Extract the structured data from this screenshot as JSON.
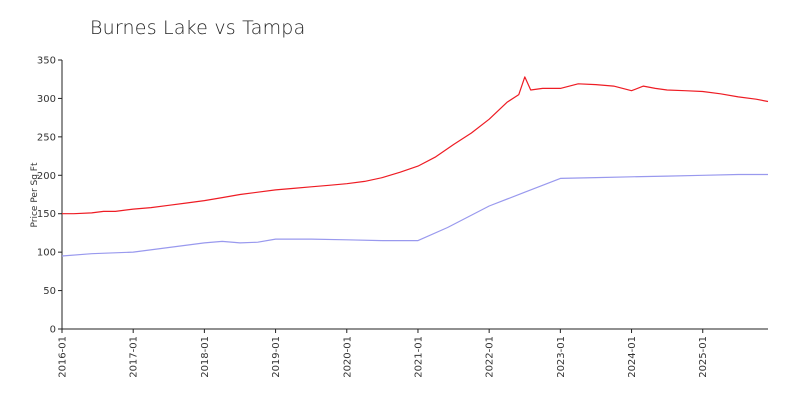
{
  "chart_data": {
    "type": "line",
    "title": "Burnes Lake vs Tampa",
    "xlabel": "",
    "ylabel": "Price Per Sq Ft",
    "ylim": [
      0,
      350
    ],
    "xlim": [
      "2016-01",
      "2025-12"
    ],
    "yticks": [
      0,
      50,
      100,
      150,
      200,
      250,
      300,
      350
    ],
    "xticks": [
      "2016-01",
      "2017-01",
      "2018-01",
      "2019-01",
      "2020-01",
      "2021-01",
      "2022-01",
      "2023-01",
      "2024-01",
      "2025-01"
    ],
    "grid": false,
    "legend": "none",
    "series": [
      {
        "color": "#ee1c24",
        "points": [
          [
            "2016-01",
            150
          ],
          [
            "2016-03",
            150
          ],
          [
            "2016-06",
            151
          ],
          [
            "2016-08",
            153
          ],
          [
            "2016-10",
            153
          ],
          [
            "2017-01",
            156
          ],
          [
            "2017-04",
            158
          ],
          [
            "2017-07",
            161
          ],
          [
            "2017-10",
            164
          ],
          [
            "2018-01",
            167
          ],
          [
            "2018-04",
            171
          ],
          [
            "2018-07",
            175
          ],
          [
            "2018-10",
            178
          ],
          [
            "2019-01",
            181
          ],
          [
            "2019-04",
            183
          ],
          [
            "2019-07",
            185
          ],
          [
            "2019-10",
            187
          ],
          [
            "2020-01",
            189
          ],
          [
            "2020-04",
            192
          ],
          [
            "2020-07",
            197
          ],
          [
            "2020-10",
            204
          ],
          [
            "2021-01",
            212
          ],
          [
            "2021-04",
            224
          ],
          [
            "2021-07",
            240
          ],
          [
            "2021-10",
            255
          ],
          [
            "2022-01",
            273
          ],
          [
            "2022-04",
            295
          ],
          [
            "2022-06",
            305
          ],
          [
            "2022-07",
            328
          ],
          [
            "2022-08",
            311
          ],
          [
            "2022-10",
            313
          ],
          [
            "2023-01",
            313
          ],
          [
            "2023-04",
            319
          ],
          [
            "2023-07",
            318
          ],
          [
            "2023-10",
            316
          ],
          [
            "2024-01",
            310
          ],
          [
            "2024-03",
            316
          ],
          [
            "2024-05",
            313
          ],
          [
            "2024-07",
            311
          ],
          [
            "2024-10",
            310
          ],
          [
            "2025-01",
            309
          ],
          [
            "2025-04",
            306
          ],
          [
            "2025-07",
            302
          ],
          [
            "2025-10",
            299
          ],
          [
            "2025-12",
            296
          ]
        ]
      },
      {
        "color": "#9999ee",
        "points": [
          [
            "2016-01",
            95
          ],
          [
            "2016-06",
            98
          ],
          [
            "2017-01",
            100
          ],
          [
            "2017-07",
            106
          ],
          [
            "2018-01",
            112
          ],
          [
            "2018-04",
            114
          ],
          [
            "2018-07",
            112
          ],
          [
            "2018-10",
            113
          ],
          [
            "2019-01",
            117
          ],
          [
            "2019-07",
            117
          ],
          [
            "2020-01",
            116
          ],
          [
            "2020-07",
            115
          ],
          [
            "2021-01",
            115
          ],
          [
            "2021-06",
            132
          ],
          [
            "2022-01",
            160
          ],
          [
            "2022-07",
            178
          ],
          [
            "2023-01",
            196
          ],
          [
            "2023-07",
            197
          ],
          [
            "2024-01",
            198
          ],
          [
            "2024-07",
            199
          ],
          [
            "2025-01",
            200
          ],
          [
            "2025-07",
            201
          ],
          [
            "2025-12",
            201
          ]
        ]
      }
    ]
  }
}
